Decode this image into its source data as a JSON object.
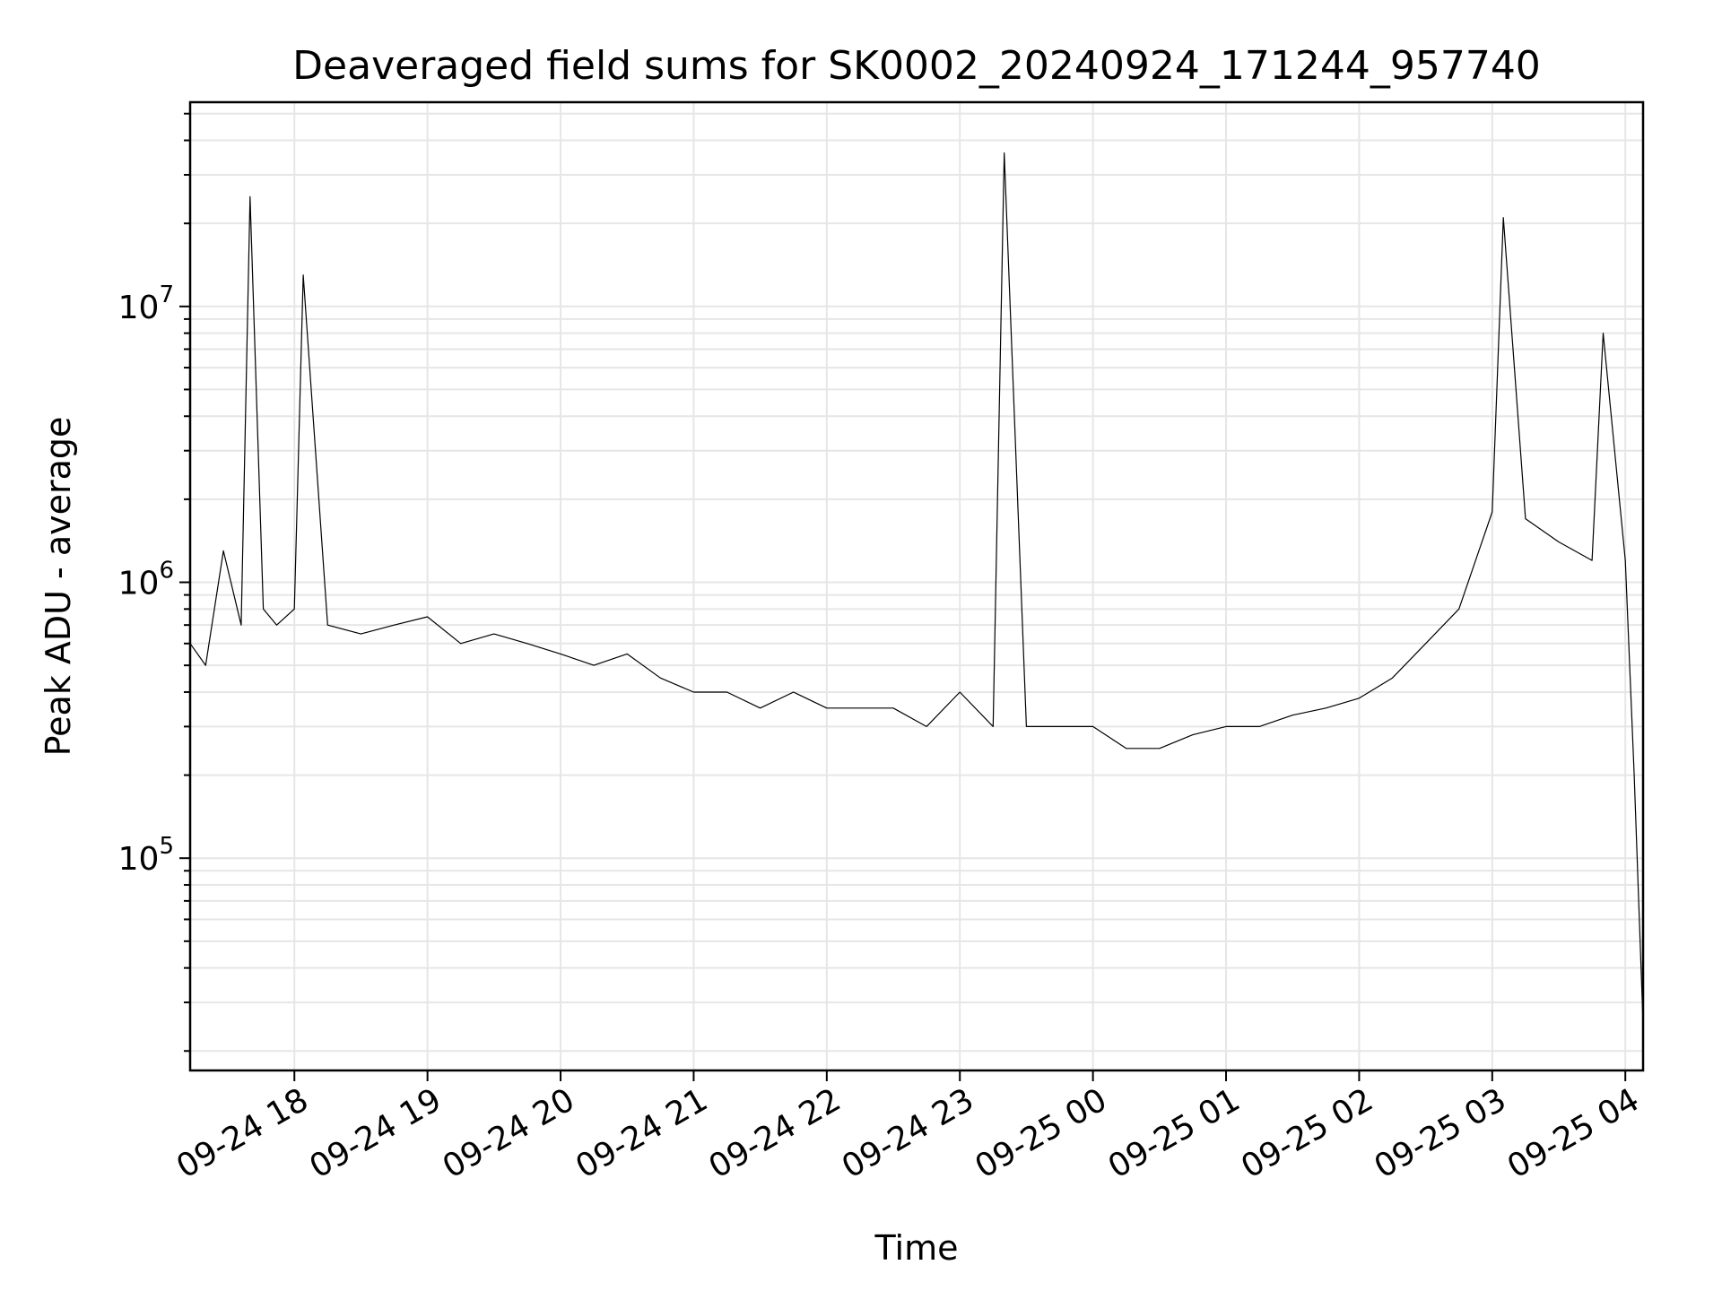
{
  "chart_data": {
    "type": "line",
    "title": "Deaveraged field sums for SK0002_20240924_171244_957740",
    "xlabel": "Time",
    "ylabel": "Peak ADU - average",
    "yscale": "log",
    "grid": true,
    "ylim": [
      17000,
      55000000
    ],
    "xlim": [
      "2024-09-24 17:13",
      "2024-09-25 04:08"
    ],
    "x_ticks": [
      {
        "t": "2024-09-24 18:00",
        "label": "09-24 18"
      },
      {
        "t": "2024-09-24 19:00",
        "label": "09-24 19"
      },
      {
        "t": "2024-09-24 20:00",
        "label": "09-24 20"
      },
      {
        "t": "2024-09-24 21:00",
        "label": "09-24 21"
      },
      {
        "t": "2024-09-24 22:00",
        "label": "09-24 22"
      },
      {
        "t": "2024-09-24 23:00",
        "label": "09-24 23"
      },
      {
        "t": "2024-09-25 00:00",
        "label": "09-25 00"
      },
      {
        "t": "2024-09-25 01:00",
        "label": "09-25 01"
      },
      {
        "t": "2024-09-25 02:00",
        "label": "09-25 02"
      },
      {
        "t": "2024-09-25 03:00",
        "label": "09-25 03"
      },
      {
        "t": "2024-09-25 04:00",
        "label": "09-25 04"
      }
    ],
    "y_ticks": [
      {
        "value": 100000,
        "base": "10",
        "exp": "5"
      },
      {
        "value": 1000000,
        "base": "10",
        "exp": "6"
      },
      {
        "value": 10000000,
        "base": "10",
        "exp": "7"
      }
    ],
    "series": [
      {
        "color": "#000000",
        "x": [
          "2024-09-24 17:13",
          "2024-09-24 17:20",
          "2024-09-24 17:28",
          "2024-09-24 17:36",
          "2024-09-24 17:40",
          "2024-09-24 17:46",
          "2024-09-24 17:52",
          "2024-09-24 18:00",
          "2024-09-24 18:04",
          "2024-09-24 18:15",
          "2024-09-24 18:30",
          "2024-09-24 18:45",
          "2024-09-24 19:00",
          "2024-09-24 19:15",
          "2024-09-24 19:30",
          "2024-09-24 19:45",
          "2024-09-24 20:00",
          "2024-09-24 20:15",
          "2024-09-24 20:30",
          "2024-09-24 20:45",
          "2024-09-24 21:00",
          "2024-09-24 21:15",
          "2024-09-24 21:30",
          "2024-09-24 21:45",
          "2024-09-24 22:00",
          "2024-09-24 22:15",
          "2024-09-24 22:30",
          "2024-09-24 22:45",
          "2024-09-24 23:00",
          "2024-09-24 23:15",
          "2024-09-24 23:20",
          "2024-09-24 23:30",
          "2024-09-24 23:45",
          "2024-09-25 00:00",
          "2024-09-25 00:15",
          "2024-09-25 00:30",
          "2024-09-25 00:45",
          "2024-09-25 01:00",
          "2024-09-25 01:15",
          "2024-09-25 01:30",
          "2024-09-25 01:45",
          "2024-09-25 02:00",
          "2024-09-25 02:15",
          "2024-09-25 02:30",
          "2024-09-25 02:45",
          "2024-09-25 03:00",
          "2024-09-25 03:05",
          "2024-09-25 03:15",
          "2024-09-25 03:30",
          "2024-09-25 03:45",
          "2024-09-25 03:50",
          "2024-09-25 04:00",
          "2024-09-25 04:04",
          "2024-09-25 04:08"
        ],
        "y": [
          600000,
          500000,
          1300000,
          700000,
          25000000,
          800000,
          700000,
          800000,
          13000000,
          700000,
          650000,
          700000,
          750000,
          600000,
          650000,
          600000,
          550000,
          500000,
          550000,
          450000,
          400000,
          400000,
          350000,
          400000,
          350000,
          350000,
          350000,
          300000,
          400000,
          300000,
          36000000,
          300000,
          300000,
          300000,
          250000,
          250000,
          280000,
          300000,
          300000,
          330000,
          350000,
          380000,
          450000,
          600000,
          800000,
          1800000,
          21000000,
          1700000,
          1400000,
          1200000,
          8000000,
          1200000,
          200000,
          25000
        ]
      }
    ]
  }
}
